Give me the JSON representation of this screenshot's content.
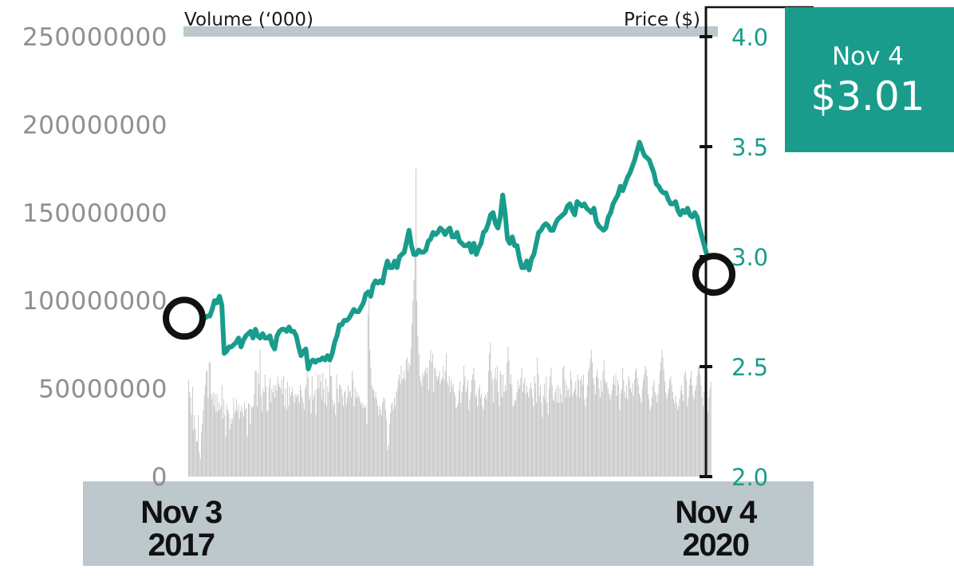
{
  "colors": {
    "price_line": "#1a9c8c",
    "volume_bar": "#c0c0c0",
    "volume_tick_text": "#8f8f8f",
    "band": "#bcc8cb",
    "axis": "#111111",
    "callout_bg": "#1a9c8c",
    "callout_text": "#ffffff"
  },
  "chart_data": {
    "type": "line",
    "left_axis_title": "Volume (‘000)",
    "right_axis_title": "Price ($)",
    "y_left_ticks": [
      "250000000",
      "200000000",
      "150000000",
      "100000000",
      "50000000",
      "0"
    ],
    "y_left_range": [
      0,
      250000000
    ],
    "y_right_ticks": [
      "4.0",
      "3.5",
      "3.0",
      "2.5",
      "2.0"
    ],
    "y_right_range": [
      2.0,
      4.0
    ],
    "x_range": [
      "Nov 3 2017",
      "Nov 4 2020"
    ],
    "x_start_label": {
      "line1": "Nov 3",
      "line2": "2017"
    },
    "x_end_label": {
      "line1": "Nov 4",
      "line2": "2020"
    },
    "callout": {
      "date": "Nov 4",
      "price": "$3.01"
    },
    "endpoint_markers": [
      "start",
      "end"
    ],
    "grid": false,
    "series": [
      {
        "axis": "right",
        "kind": "line",
        "values": [
          2.72,
          2.73,
          2.73,
          2.76,
          2.8,
          2.79,
          2.82,
          2.78,
          2.56,
          2.57,
          2.59,
          2.59,
          2.6,
          2.61,
          2.63,
          2.59,
          2.62,
          2.64,
          2.65,
          2.66,
          2.63,
          2.67,
          2.64,
          2.63,
          2.65,
          2.63,
          2.63,
          2.64,
          2.6,
          2.58,
          2.64,
          2.66,
          2.67,
          2.67,
          2.66,
          2.68,
          2.66,
          2.66,
          2.64,
          2.59,
          2.55,
          2.57,
          2.58,
          2.49,
          2.52,
          2.53,
          2.52,
          2.53,
          2.53,
          2.54,
          2.53,
          2.55,
          2.53,
          2.56,
          2.61,
          2.64,
          2.69,
          2.69,
          2.71,
          2.71,
          2.72,
          2.74,
          2.76,
          2.75,
          2.75,
          2.77,
          2.79,
          2.83,
          2.84,
          2.82,
          2.87,
          2.89,
          2.88,
          2.89,
          2.88,
          2.94,
          2.98,
          2.95,
          2.95,
          2.98,
          2.95,
          3.0,
          3.01,
          3.02,
          3.07,
          3.12,
          3.05,
          3.01,
          3.01,
          3.03,
          3.02,
          3.02,
          3.03,
          3.07,
          3.08,
          3.11,
          3.1,
          3.11,
          3.13,
          3.12,
          3.1,
          3.12,
          3.13,
          3.09,
          3.09,
          3.11,
          3.07,
          3.06,
          3.05,
          3.05,
          3.06,
          3.02,
          3.06,
          3.01,
          3.04,
          3.06,
          3.11,
          3.12,
          3.15,
          3.19,
          3.2,
          3.15,
          3.13,
          3.18,
          3.28,
          3.2,
          3.08,
          3.06,
          3.09,
          3.05,
          3.05,
          2.99,
          2.95,
          2.95,
          2.98,
          2.94,
          2.99,
          3.01,
          3.06,
          3.11,
          3.12,
          3.14,
          3.15,
          3.14,
          3.12,
          3.12,
          3.15,
          3.17,
          3.18,
          3.19,
          3.2,
          3.23,
          3.24,
          3.21,
          3.19,
          3.25,
          3.24,
          3.23,
          3.24,
          3.22,
          3.21,
          3.2,
          3.22,
          3.16,
          3.14,
          3.13,
          3.12,
          3.13,
          3.18,
          3.2,
          3.24,
          3.26,
          3.28,
          3.32,
          3.3,
          3.33,
          3.36,
          3.38,
          3.41,
          3.44,
          3.48,
          3.52,
          3.49,
          3.46,
          3.45,
          3.44,
          3.41,
          3.38,
          3.33,
          3.32,
          3.3,
          3.29,
          3.29,
          3.26,
          3.24,
          3.24,
          3.25,
          3.21,
          3.19,
          3.21,
          3.2,
          3.22,
          3.19,
          3.18,
          3.2,
          3.18,
          3.13,
          3.09,
          3.05,
          3.01
        ]
      },
      {
        "axis": "left",
        "kind": "bar",
        "values": [
          55,
          48,
          45,
          35,
          51,
          27,
          35,
          27,
          20,
          20,
          35,
          14,
          10,
          25,
          30,
          38,
          46,
          52,
          60,
          60,
          45,
          65,
          65,
          47,
          44,
          48,
          40,
          47,
          37,
          47,
          37,
          42,
          38,
          40,
          52,
          33,
          44,
          35,
          23,
          41,
          38,
          36,
          27,
          33,
          30,
          33,
          45,
          36,
          38,
          44,
          37,
          41,
          33,
          37,
          40,
          37,
          34,
          42,
          38,
          39,
          23,
          42,
          41,
          30,
          40,
          39,
          40,
          47,
          60,
          60,
          40,
          59,
          53,
          72,
          46,
          37,
          50,
          48,
          58,
          51,
          37,
          38,
          51,
          56,
          42,
          50,
          48,
          52,
          45,
          52,
          49,
          57,
          53,
          51,
          50,
          55,
          47,
          57,
          40,
          50,
          38,
          54,
          40,
          51,
          46,
          48,
          51,
          46,
          42,
          47,
          45,
          47,
          46,
          42,
          52,
          49,
          45,
          42,
          38,
          50,
          52,
          60,
          56,
          44,
          46,
          36,
          57,
          44,
          46,
          49,
          35,
          50,
          58,
          50,
          58,
          54,
          44,
          59,
          50,
          42,
          56,
          40,
          51,
          48,
          64,
          57,
          57,
          44,
          40,
          42,
          35,
          58,
          50,
          42,
          52,
          52,
          50,
          46,
          40,
          48,
          49,
          41,
          45,
          52,
          48,
          49,
          45,
          60,
          55,
          40,
          50,
          45,
          48,
          45,
          46,
          43,
          41,
          42,
          39,
          41,
          39,
          40,
          30,
          92,
          102,
          72,
          62,
          52,
          50,
          49,
          45,
          48,
          44,
          40,
          35,
          40,
          38,
          35,
          42,
          45,
          44,
          38,
          32,
          15,
          18,
          30,
          36,
          41,
          42,
          38,
          45,
          40,
          48,
          50,
          55,
          58,
          53,
          63,
          55,
          56,
          60,
          55,
          66,
          68,
          60,
          65,
          63,
          73,
          87,
          100,
          112,
          127,
          175,
          100,
          80,
          70,
          57,
          54,
          52,
          59,
          57,
          60,
          62,
          59,
          62,
          49,
          66,
          72,
          65,
          70,
          48,
          62,
          61,
          57,
          55,
          57,
          60,
          53,
          55,
          56,
          63,
          55,
          60,
          70,
          54,
          52,
          57,
          48,
          55,
          51,
          53,
          48,
          46,
          39,
          40,
          42,
          49,
          54,
          42,
          48,
          52,
          63,
          57,
          48,
          50,
          55,
          38,
          44,
          48,
          55,
          58,
          62,
          55,
          45,
          47,
          40,
          50,
          52,
          45,
          47,
          40,
          38,
          45,
          47,
          44,
          48,
          60,
          70,
          76,
          60,
          55,
          42,
          56,
          62,
          55,
          63,
          48,
          40,
          60,
          58,
          45,
          58,
          48,
          52,
          49,
          65,
          74,
          66,
          53,
          58,
          52,
          40,
          41,
          44,
          43,
          48,
          55,
          50,
          52,
          56,
          62,
          48,
          53,
          56,
          47,
          52,
          48,
          45,
          50,
          53,
          50,
          45,
          40,
          57,
          53,
          42,
          68,
          58,
          46,
          52,
          42,
          34,
          46,
          53,
          44,
          57,
          42,
          35,
          50,
          57,
          62,
          52,
          44,
          43,
          48,
          50,
          42,
          52,
          42,
          50,
          47,
          42,
          62,
          63,
          55,
          45,
          52,
          49,
          50,
          45,
          60,
          55,
          46,
          48,
          50,
          54,
          46,
          58,
          55,
          45,
          55,
          57,
          52,
          58,
          44,
          40,
          45,
          52,
          60,
          62,
          67,
          72,
          65,
          56,
          52,
          47,
          57,
          61,
          56,
          50,
          45,
          55,
          48,
          60,
          66,
          55,
          53,
          54,
          50,
          47,
          44,
          46,
          49,
          53,
          57,
          52,
          58,
          46,
          55,
          52,
          38,
          47,
          50,
          62,
          55,
          48,
          45,
          52,
          44,
          57,
          55,
          50,
          48,
          53,
          46,
          55,
          60,
          62,
          56,
          52,
          47,
          45,
          42,
          50,
          55,
          58,
          63,
          61,
          57,
          47,
          44,
          38,
          40,
          45,
          52,
          55,
          48,
          46,
          42,
          47,
          53,
          60,
          65,
          72,
          68,
          61,
          54,
          48,
          44,
          47,
          50,
          55,
          57,
          52,
          48,
          44,
          41,
          46,
          42,
          38,
          40,
          44,
          49,
          52,
          47,
          43,
          58,
          60,
          55,
          40,
          45,
          52,
          56,
          60,
          52,
          46,
          44,
          49,
          52,
          57,
          63,
          62,
          58,
          52,
          45,
          40,
          48,
          55,
          47,
          44,
          37,
          45,
          50,
          54
        ]
      }
    ]
  }
}
